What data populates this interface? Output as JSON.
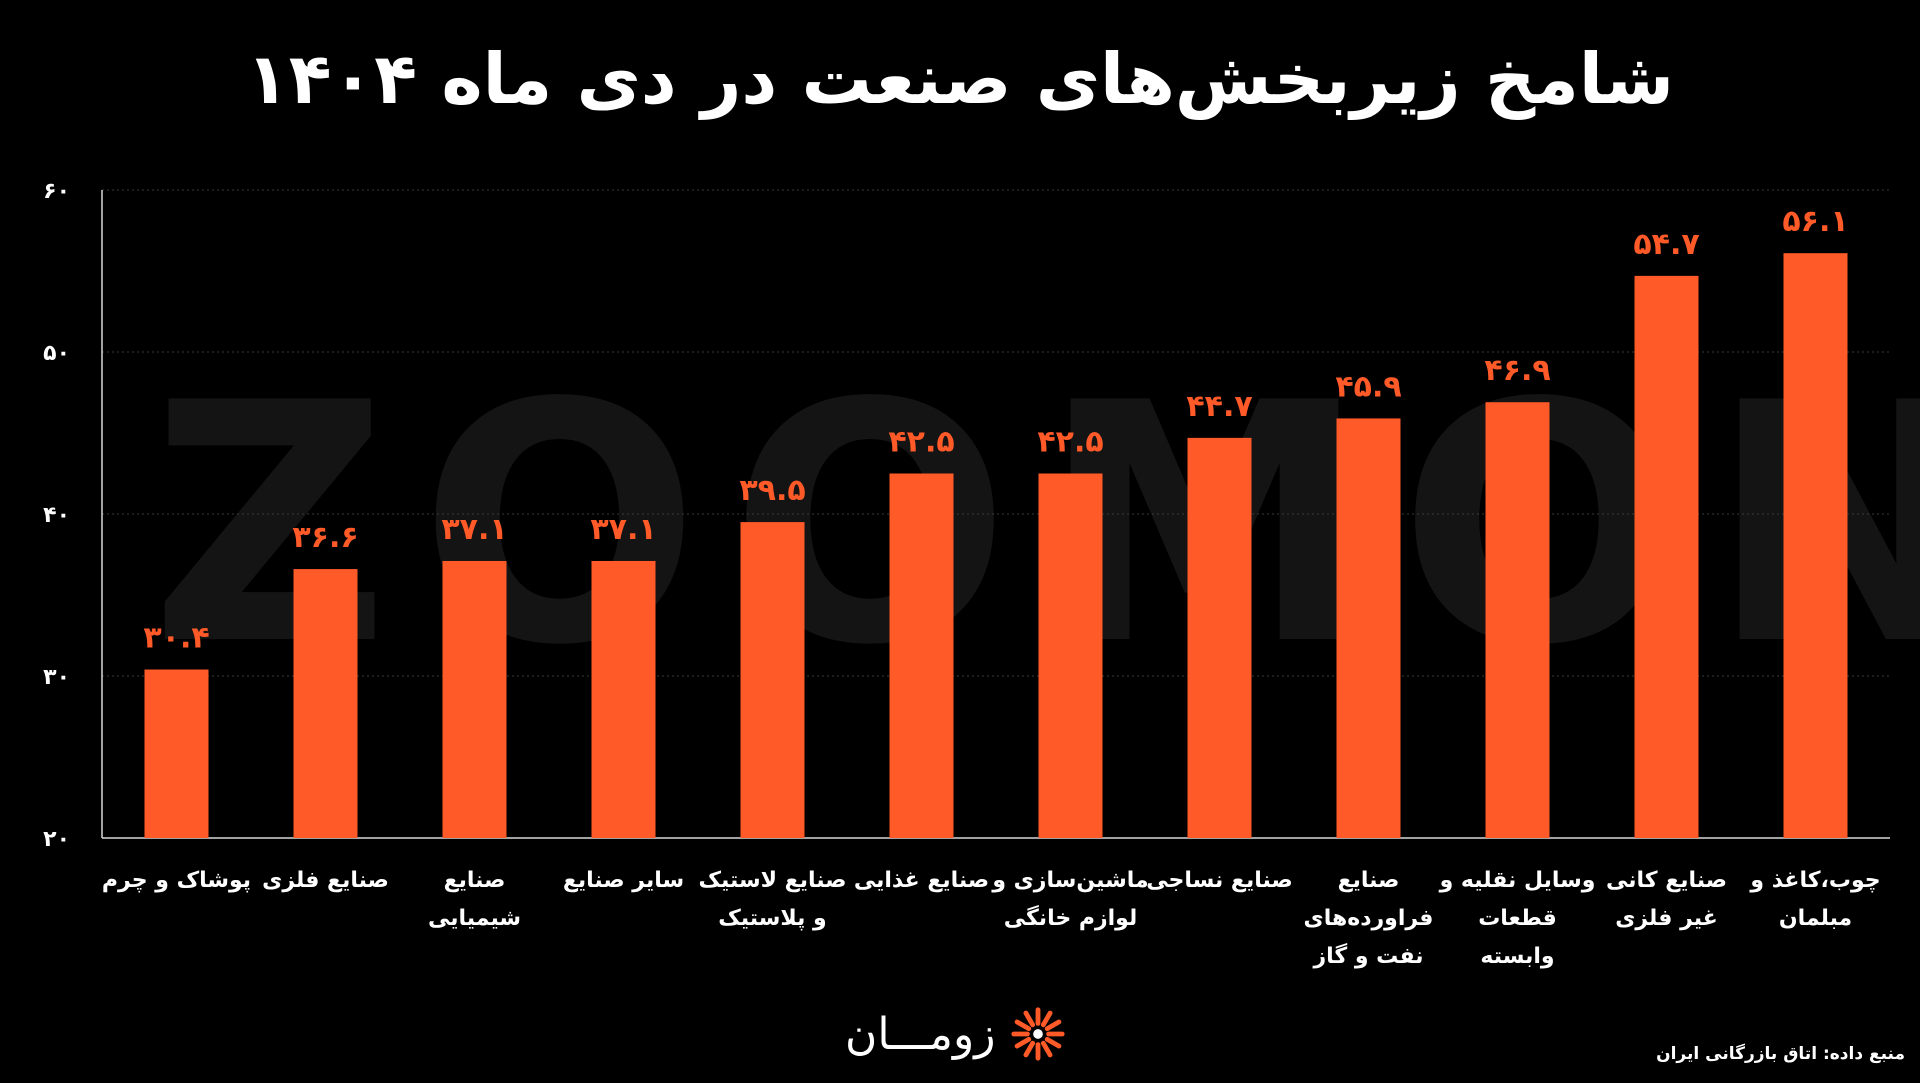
{
  "watermark": "ZOOMON",
  "source_text": "منبع داده: اتاق  بازرگانی ایران",
  "logo": {
    "text": "زومـــان",
    "icon": "sun-burst-icon"
  },
  "colors": {
    "bar": "#ff5a28",
    "value_label": "#ff5a28",
    "background": "#000000",
    "grid": "#3a3a3a"
  },
  "chart_data": {
    "type": "bar",
    "title": "شامخ زیربخش‌های صنعت در دی ماه ۱۴۰۴",
    "xlabel": "",
    "ylabel": "",
    "ylim": [
      20,
      60
    ],
    "grid": true,
    "ytick_labels": [
      "۲۰",
      "۳۰",
      "۴۰",
      "۵۰",
      "۶۰"
    ],
    "categories": [
      "پوشاک و چرم",
      "صنایع فلزی",
      "صنایع شیمیایی",
      "سایر صنایع",
      "صنایع لاستیک و پلاستیک",
      "صنایع غذایی",
      "ماشین‌سازی و لوازم خانگی",
      "صنایع نساجی",
      "صنایع فراورده‌های نفت و گاز",
      "وسایل نقلیه و قطعات وابسته",
      "صنایع کانی غیر فلزی",
      "چوب،کاغذ و مبلمان"
    ],
    "values": [
      30.4,
      36.6,
      37.1,
      37.1,
      39.5,
      42.5,
      42.5,
      44.7,
      45.9,
      46.9,
      54.7,
      56.1
    ],
    "value_labels": [
      "۳۰.۴",
      "۳۶.۶",
      "۳۷.۱",
      "۳۷.۱",
      "۳۹.۵",
      "۴۲.۵",
      "۴۲.۵",
      "۴۴.۷",
      "۴۵.۹",
      "۴۶.۹",
      "۵۴.۷",
      "۵۶.۱"
    ]
  }
}
